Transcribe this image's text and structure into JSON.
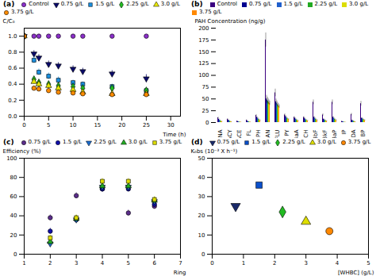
{
  "chart_data": [
    {
      "type": "scatter",
      "title": "(a)",
      "xlabel": "Time (h)",
      "ylabel": "C/C₀",
      "xlim": [
        0,
        32
      ],
      "ylim": [
        0.0,
        1.1
      ],
      "xticks": [
        0,
        5,
        10,
        15,
        20,
        25,
        30
      ],
      "yticks": [
        {
          "value": 0.0,
          "label": "0.0"
        },
        {
          "value": 0.2,
          "label": "0.2"
        },
        {
          "value": 0.4,
          "label": "0.4"
        },
        {
          "value": 0.6,
          "label": "0.6"
        },
        {
          "value": 0.8,
          "label": "0.8"
        },
        {
          "value": 1.0,
          "label": "1.0"
        }
      ],
      "grid": false,
      "series": [
        {
          "name": "Control",
          "color": "#8B2FC9",
          "marker": "circle",
          "x": [
            0,
            2,
            3,
            5,
            7,
            10,
            12,
            18,
            25
          ],
          "values": [
            1.0,
            1.0,
            1.0,
            1.0,
            1.0,
            1.0,
            1.0,
            1.0,
            1.0
          ],
          "yerr": [
            0.01,
            0.01,
            0.01,
            0.01,
            0.01,
            0.01,
            0.01,
            0.01,
            0.01
          ]
        },
        {
          "name": "0.75 g/L",
          "color": "#0A0A6A",
          "marker": "triangle-down",
          "x": [
            0,
            2,
            3,
            5,
            7,
            10,
            12,
            18,
            25
          ],
          "values": [
            1.0,
            0.78,
            0.73,
            0.65,
            0.63,
            0.59,
            0.56,
            0.53,
            0.47
          ],
          "yerr": [
            0.02,
            0.04,
            0.04,
            0.04,
            0.04,
            0.04,
            0.04,
            0.04,
            0.05
          ]
        },
        {
          "name": "1.5 g/L",
          "color": "#1A90E0",
          "marker": "square",
          "x": [
            0,
            2,
            3,
            5,
            7,
            10,
            12,
            18,
            25
          ],
          "values": [
            1.0,
            0.7,
            0.55,
            0.5,
            0.45,
            0.42,
            0.4,
            0.37,
            0.32
          ],
          "yerr": [
            0.02,
            0.04,
            0.04,
            0.04,
            0.04,
            0.03,
            0.03,
            0.03,
            0.03
          ]
        },
        {
          "name": "2.25 g/L",
          "color": "#22BB22",
          "marker": "diamond",
          "x": [
            0,
            2,
            3,
            5,
            7,
            10,
            12,
            18,
            25
          ],
          "values": [
            1.0,
            0.46,
            0.42,
            0.4,
            0.38,
            0.37,
            0.35,
            0.35,
            0.32
          ],
          "yerr": [
            0.02,
            0.03,
            0.03,
            0.03,
            0.03,
            0.03,
            0.03,
            0.03,
            0.03
          ]
        },
        {
          "name": "3.0 g/L",
          "color": "#E8E800",
          "marker": "triangle",
          "x": [
            0,
            2,
            3,
            5,
            7,
            10,
            12,
            18,
            25
          ],
          "values": [
            1.0,
            0.43,
            0.4,
            0.38,
            0.35,
            0.33,
            0.3,
            0.28,
            0.28
          ],
          "yerr": [
            0.02,
            0.03,
            0.03,
            0.03,
            0.03,
            0.03,
            0.03,
            0.03,
            0.03
          ]
        },
        {
          "name": "3.75 g/L",
          "color": "#FF8C00",
          "marker": "circle",
          "x": [
            0,
            2,
            3,
            5,
            7,
            10,
            12,
            18,
            25
          ],
          "values": [
            1.0,
            0.35,
            0.34,
            0.32,
            0.3,
            0.29,
            0.28,
            0.27,
            0.27
          ],
          "yerr": [
            0.02,
            0.03,
            0.03,
            0.03,
            0.03,
            0.03,
            0.03,
            0.03,
            0.03
          ]
        }
      ]
    },
    {
      "type": "bar",
      "title": "(b)",
      "ylabel": "PAH Concentration (ng/g)",
      "ylim": [
        0,
        200
      ],
      "yticks": [
        0,
        25,
        50,
        75,
        100,
        125,
        150,
        175,
        200
      ],
      "grid": false,
      "categories": [
        "NA",
        "ACY",
        "ACE",
        "FL",
        "PH",
        "AN",
        "FLU",
        "PY",
        "BaA",
        "CH",
        "BbF",
        "BkF",
        "BaP",
        "IP",
        "DA",
        "BP"
      ],
      "series": [
        {
          "name": "Control",
          "color": "#3B0080",
          "values": [
            10,
            7,
            3,
            5,
            15,
            175,
            63,
            16,
            11,
            11,
            43,
            16,
            43,
            2.5,
            17,
            40
          ],
          "yerr": [
            1.5,
            1.0,
            0.5,
            0.8,
            2.0,
            15,
            8,
            2.5,
            1.5,
            1.5,
            5,
            2.5,
            5,
            0.4,
            2.5,
            5
          ]
        },
        {
          "name": "0.75 g/L",
          "color": "#000090",
          "values": [
            7,
            5,
            2,
            3,
            11,
            50,
            44,
            13,
            9,
            9,
            11,
            7,
            11,
            1.8,
            4.5,
            9
          ],
          "yerr": [
            1.0,
            0.8,
            0.4,
            0.5,
            1.5,
            8,
            6,
            2,
            1.2,
            1.2,
            2,
            1.2,
            2,
            0.3,
            1,
            1.5
          ]
        },
        {
          "name": "1.5 g/L",
          "color": "#2060CC",
          "values": [
            5,
            4,
            1.5,
            2,
            9,
            47,
            41,
            11,
            7,
            7,
            9,
            5.5,
            9,
            1.3,
            3.5,
            8
          ],
          "yerr": [
            0.8,
            0.6,
            0.3,
            0.4,
            1.2,
            7,
            5,
            1.5,
            1,
            1,
            1.5,
            1,
            1.5,
            0.2,
            0.8,
            1.2
          ]
        },
        {
          "name": "2.25 g/L",
          "color": "#22AA22",
          "values": [
            3.5,
            2.5,
            1,
            1.5,
            7,
            45,
            38,
            9,
            5.5,
            5.5,
            7,
            4.5,
            7,
            0.9,
            2.5,
            6.5
          ],
          "yerr": [
            0.6,
            0.5,
            0.2,
            0.3,
            1,
            6,
            4.5,
            1.2,
            0.8,
            0.8,
            1.2,
            0.8,
            1.2,
            0.15,
            0.6,
            1
          ]
        },
        {
          "name": "3.0 g/L",
          "color": "#DDDD00",
          "values": [
            2.5,
            1.8,
            0.8,
            1,
            5.5,
            43,
            36,
            7.5,
            4.5,
            4.5,
            5.5,
            3.5,
            5.5,
            0.7,
            1.8,
            5.5
          ],
          "yerr": [
            0.5,
            0.4,
            0.2,
            0.2,
            0.8,
            5,
            4,
            1,
            0.7,
            0.7,
            1,
            0.7,
            1,
            0.12,
            0.5,
            0.9
          ]
        },
        {
          "name": "3.75 g/L",
          "color": "#FF8800",
          "values": [
            1.8,
            1.3,
            0.6,
            0.7,
            4.5,
            41,
            34,
            6.5,
            3.5,
            3.5,
            4.5,
            2.8,
            4.5,
            0.4,
            1.3,
            4.5
          ],
          "yerr": [
            0.4,
            0.3,
            0.15,
            0.15,
            0.7,
            4.5,
            3.5,
            0.9,
            0.6,
            0.6,
            0.8,
            0.6,
            0.8,
            0.1,
            0.4,
            0.8
          ]
        }
      ]
    },
    {
      "type": "scatter",
      "title": "(c)",
      "xlabel": "Ring",
      "ylabel": "Efficiency (%)",
      "xlim": [
        1,
        7
      ],
      "ylim": [
        0,
        100
      ],
      "xticks": [
        1,
        2,
        3,
        4,
        5,
        6,
        7
      ],
      "yticks": [
        0,
        20,
        40,
        60,
        80,
        100
      ],
      "grid": false,
      "series": [
        {
          "name": "0.75 g/L",
          "color": "#5B2D8B",
          "marker": "circle",
          "x": [
            2,
            3,
            4,
            5,
            6
          ],
          "values": [
            38,
            61,
            68,
            43,
            50
          ],
          "yerr": [
            3,
            3,
            3,
            3,
            3
          ]
        },
        {
          "name": "1.5 g/L",
          "color": "#1010AA",
          "marker": "circle",
          "x": [
            2,
            3,
            4,
            5,
            6
          ],
          "values": [
            24,
            36,
            68,
            68,
            52
          ],
          "yerr": [
            3,
            3,
            3,
            3,
            3
          ]
        },
        {
          "name": "2.25 g/L",
          "color": "#1A6BCC",
          "marker": "triangle-down",
          "x": [
            2,
            3,
            4,
            5,
            6
          ],
          "values": [
            11,
            36,
            70,
            70,
            55
          ],
          "yerr": [
            3,
            3,
            3,
            3,
            3
          ]
        },
        {
          "name": "3.0 g/L",
          "color": "#22AA22",
          "marker": "triangle",
          "x": [
            2,
            3,
            4,
            5,
            6
          ],
          "values": [
            13,
            37,
            71,
            71,
            56
          ],
          "yerr": [
            3,
            3,
            3,
            3,
            3
          ]
        },
        {
          "name": "3.75 g/L",
          "color": "#DDDD00",
          "marker": "square",
          "x": [
            2,
            3,
            4,
            5,
            6
          ],
          "values": [
            17,
            38,
            76,
            76,
            57
          ],
          "yerr": [
            3,
            3,
            3,
            3,
            3
          ]
        }
      ]
    },
    {
      "type": "scatter",
      "title": "(d)",
      "xlabel": "[WHBC] (g/L)",
      "ylabel": "K₀bs (10⁻³ X h⁻¹)",
      "xlim": [
        0,
        5
      ],
      "ylim": [
        0,
        50
      ],
      "xticks": [
        0,
        1,
        2,
        3,
        4,
        5
      ],
      "yticks": [
        0,
        10,
        20,
        30,
        40,
        50
      ],
      "grid": false,
      "series": [
        {
          "name": "0.75 g/L",
          "color": "#1A2A6A",
          "marker": "triangle-down",
          "x": [
            0.75
          ],
          "values": [
            25
          ]
        },
        {
          "name": "1.5 g/L",
          "color": "#0A50CC",
          "marker": "square",
          "x": [
            1.5
          ],
          "values": [
            36
          ]
        },
        {
          "name": "2.25 g/L",
          "color": "#22BB22",
          "marker": "diamond",
          "x": [
            2.25
          ],
          "values": [
            22
          ]
        },
        {
          "name": "3.0 g/L",
          "color": "#DDDD00",
          "marker": "triangle",
          "x": [
            3.0
          ],
          "values": [
            17
          ]
        },
        {
          "name": "3.75 g/L",
          "color": "#FF8800",
          "marker": "circle",
          "x": [
            3.75
          ],
          "values": [
            12
          ]
        }
      ]
    }
  ]
}
